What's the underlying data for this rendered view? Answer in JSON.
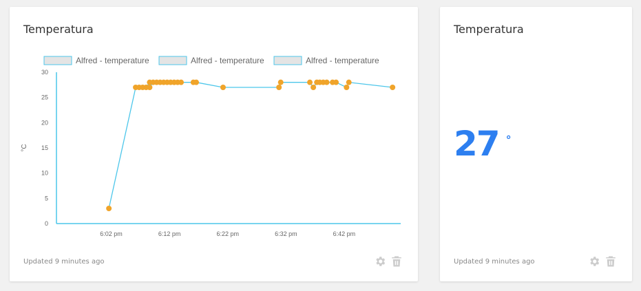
{
  "chart_card": {
    "title": "Temperatura",
    "updated": "Updated 9 minutes ago",
    "settings_icon": "gear-icon",
    "delete_icon": "trash-icon"
  },
  "value_card": {
    "title": "Temperatura",
    "value": "27",
    "unit": "°",
    "updated": "Updated 9 minutes ago",
    "settings_icon": "gear-icon",
    "delete_icon": "trash-icon"
  },
  "colors": {
    "line": "#4cc6ea",
    "point": "#f0a42a",
    "axis": "#4cc6ea",
    "value": "#2d7ff0",
    "legend_fill": "#e4e4e4",
    "legend_stroke": "#4cc6ea",
    "icon": "#cccccc"
  },
  "chart_data": {
    "type": "line",
    "title": "",
    "xlabel": "",
    "ylabel": "°C",
    "ylim": [
      0,
      30
    ],
    "yticks": [
      0,
      5,
      10,
      15,
      20,
      25,
      30
    ],
    "xticks": [
      "6:02 pm",
      "6:12 pm",
      "6:22 pm",
      "6:32 pm",
      "6:42 pm"
    ],
    "xtick_minutes": [
      2,
      12,
      22,
      32,
      42
    ],
    "xlim_minutes": [
      -7.4,
      51.7
    ],
    "legend": [
      "Alfred - temperature",
      "Alfred - temperature",
      "Alfred - temperature"
    ],
    "legend_position": "top",
    "grid": false,
    "series": [
      {
        "name": "Alfred - temperature",
        "x_minutes": [
          1.6,
          6.2,
          6.8,
          7.4,
          8.0,
          8.6,
          8.6,
          9.2,
          9.8,
          10.4,
          11.0,
          11.6,
          12.2,
          12.8,
          13.4,
          14.0,
          16.1,
          16.6,
          21.2,
          30.8,
          31.1,
          36.1,
          36.7,
          37.3,
          37.8,
          38.4,
          39.0,
          40.0,
          40.6,
          42.4,
          42.8,
          50.3
        ],
        "y": [
          3,
          27,
          27,
          27,
          27,
          28,
          27,
          28,
          28,
          28,
          28,
          28,
          28,
          28,
          28,
          28,
          28,
          28,
          27,
          27,
          28,
          28,
          27,
          28,
          28,
          28,
          28,
          28,
          28,
          27,
          28,
          27
        ]
      }
    ]
  }
}
